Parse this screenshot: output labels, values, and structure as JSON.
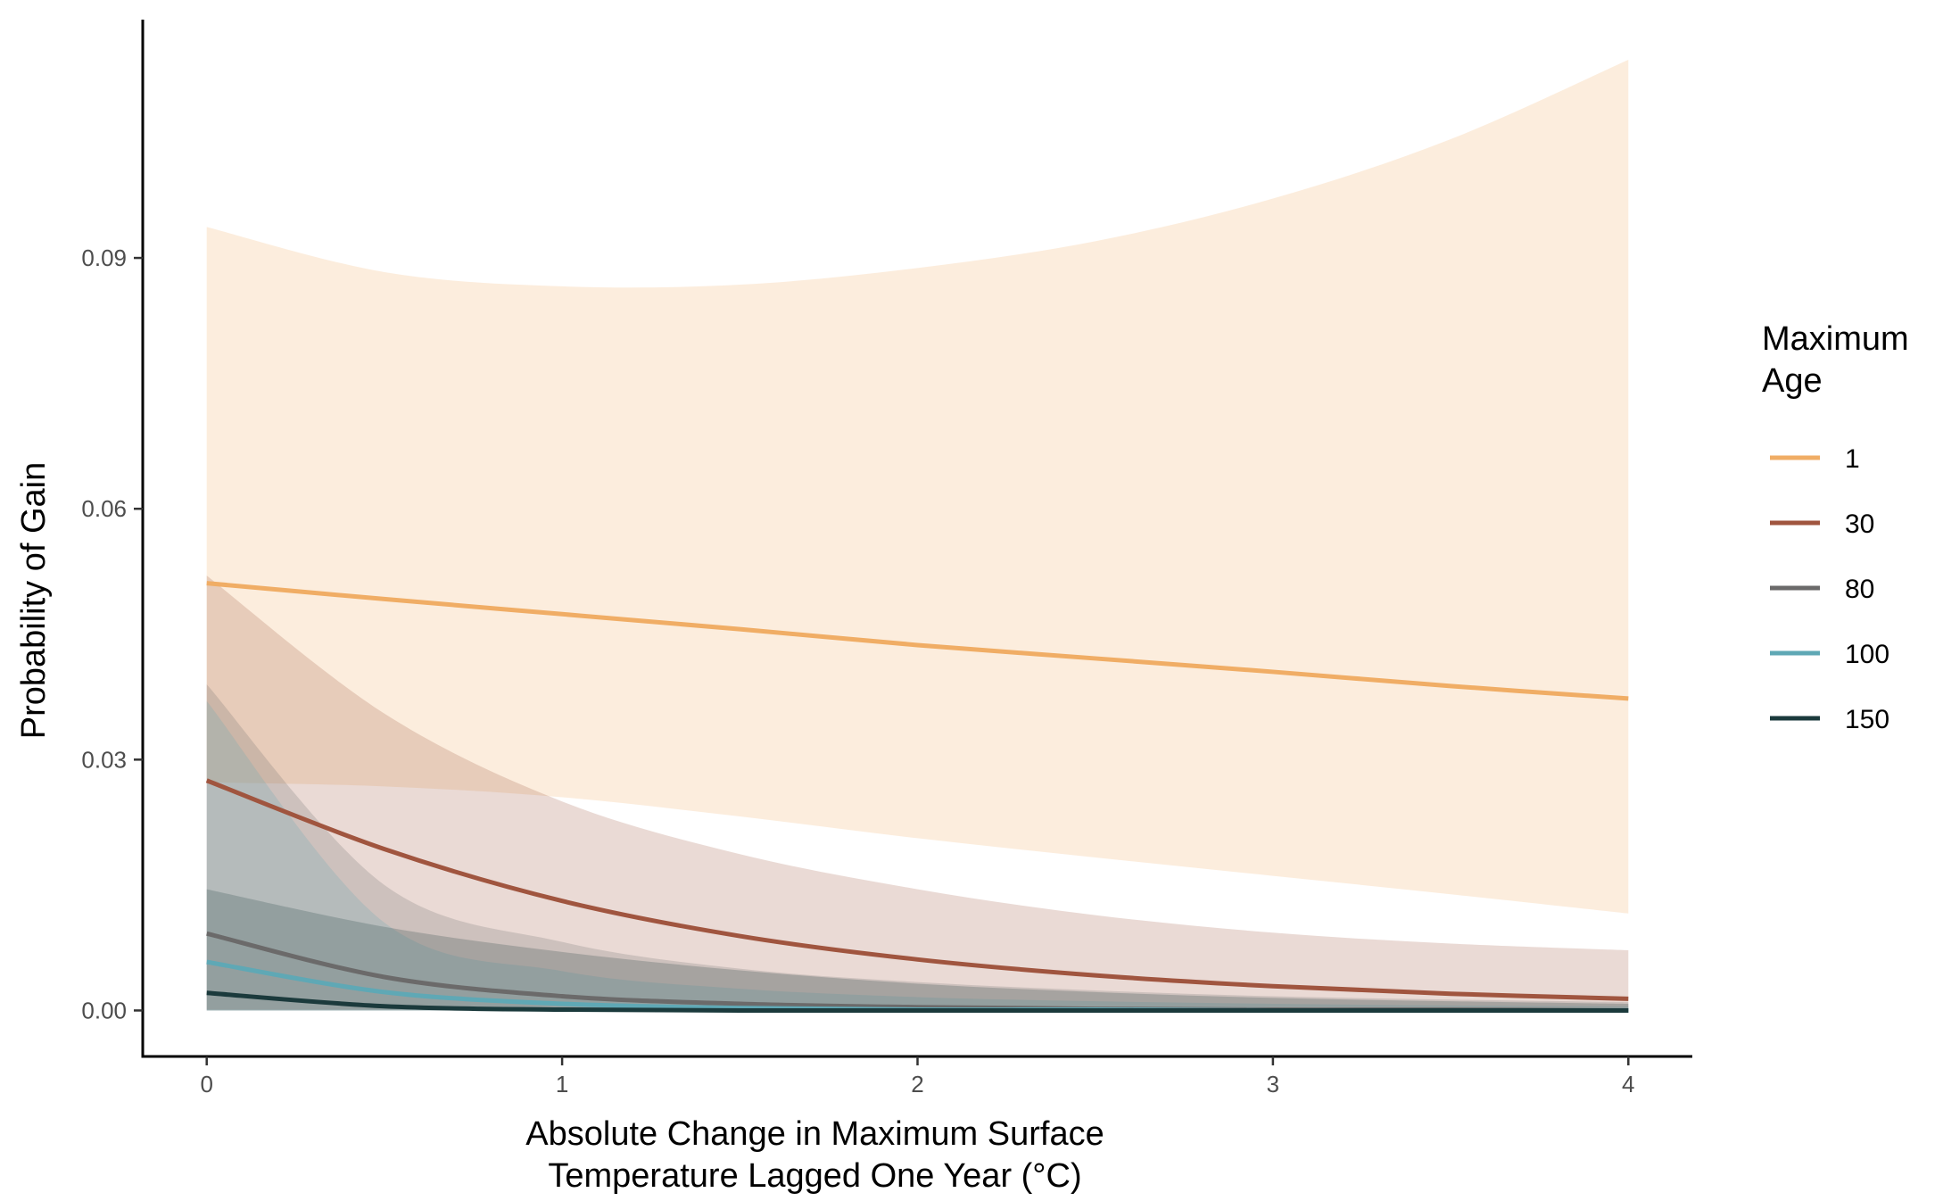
{
  "chart_data": {
    "type": "line",
    "xlabel_lines": [
      "Absolute Change in Maximum Surface",
      "Temperature Lagged One Year (°C)"
    ],
    "ylabel": "Probability of Gain",
    "xlim": [
      -0.18,
      4.18
    ],
    "ylim": [
      -0.0055,
      0.1185
    ],
    "x_ticks": [
      0,
      1,
      2,
      3,
      4
    ],
    "x_tick_labels": [
      "0",
      "1",
      "2",
      "3",
      "4"
    ],
    "y_ticks": [
      0,
      0.03,
      0.06,
      0.09
    ],
    "y_tick_labels": [
      "0.00",
      "0.03",
      "0.06",
      "0.09"
    ],
    "grid": false,
    "legend": {
      "title_lines": [
        "Maximum",
        "Age"
      ],
      "position": "right"
    },
    "x": [
      0,
      0.5,
      1,
      1.5,
      2,
      2.5,
      3,
      3.5,
      4
    ],
    "series": [
      {
        "name": "1",
        "color": "#F0AD65",
        "band_opacity": 0.22,
        "values": [
          0.0511,
          0.0492,
          0.0474,
          0.0456,
          0.0437,
          0.0421,
          0.0405,
          0.0388,
          0.0373
        ],
        "lower": [
          0.0273,
          0.0268,
          0.0255,
          0.0232,
          0.0206,
          0.0183,
          0.0161,
          0.0139,
          0.0116
        ],
        "upper": [
          0.0937,
          0.0883,
          0.0866,
          0.0868,
          0.0888,
          0.092,
          0.0971,
          0.1042,
          0.1137
        ]
      },
      {
        "name": "30",
        "color": "#A0553F",
        "band_opacity": 0.22,
        "values": [
          0.0275,
          0.0193,
          0.0131,
          0.0089,
          0.0061,
          0.0042,
          0.0029,
          0.002,
          0.0014
        ],
        "lower": [
          0.0001,
          0.0001,
          0.0001,
          0.0001,
          0.0001,
          0.0001,
          0.0001,
          0.0001,
          0.0001
        ],
        "upper": [
          0.052,
          0.0355,
          0.025,
          0.0187,
          0.0145,
          0.0114,
          0.0093,
          0.008,
          0.0072
        ]
      },
      {
        "name": "80",
        "color": "#6B6A6A",
        "band_opacity": 0.22,
        "values": [
          0.0092,
          0.004,
          0.0017,
          0.0008,
          0.0004,
          0.0002,
          0.0001,
          0.0001,
          0.0
        ],
        "lower": [
          0.0,
          0.0,
          0.0,
          0.0,
          0.0,
          0.0,
          0.0,
          0.0,
          0.0
        ],
        "upper": [
          0.039,
          0.015,
          0.0082,
          0.005,
          0.0034,
          0.0024,
          0.0017,
          0.0013,
          0.001
        ]
      },
      {
        "name": "100",
        "color": "#5FA8B5",
        "band_opacity": 0.22,
        "values": [
          0.0058,
          0.0022,
          0.0008,
          0.0003,
          0.0001,
          0.0001,
          0.0,
          0.0,
          0.0
        ],
        "lower": [
          0.0,
          0.0,
          0.0,
          0.0,
          0.0,
          0.0,
          0.0,
          0.0,
          0.0
        ],
        "upper": [
          0.037,
          0.0105,
          0.0047,
          0.0026,
          0.0016,
          0.0011,
          0.0008,
          0.0006,
          0.0005
        ]
      },
      {
        "name": "150",
        "color": "#1B3A3C",
        "band_opacity": 0.22,
        "values": [
          0.0021,
          0.0005,
          0.0001,
          0.0,
          0.0,
          0.0,
          0.0,
          0.0,
          0.0
        ],
        "lower": [
          0.0,
          0.0,
          0.0,
          0.0,
          0.0,
          0.0,
          0.0,
          0.0,
          0.0
        ],
        "upper": [
          0.0145,
          0.01,
          0.007,
          0.0048,
          0.0032,
          0.0022,
          0.0015,
          0.0011,
          0.0008
        ]
      }
    ]
  }
}
